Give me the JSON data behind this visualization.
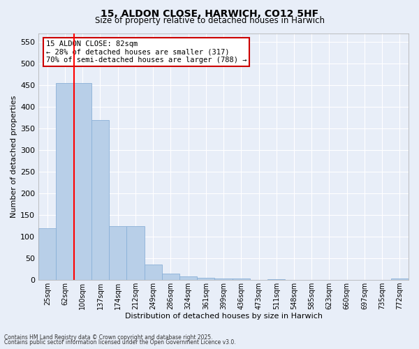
{
  "title1": "15, ALDON CLOSE, HARWICH, CO12 5HF",
  "title2": "Size of property relative to detached houses in Harwich",
  "xlabel": "Distribution of detached houses by size in Harwich",
  "ylabel": "Number of detached properties",
  "categories": [
    "25sqm",
    "62sqm",
    "100sqm",
    "137sqm",
    "174sqm",
    "212sqm",
    "249sqm",
    "286sqm",
    "324sqm",
    "361sqm",
    "399sqm",
    "436sqm",
    "473sqm",
    "511sqm",
    "548sqm",
    "585sqm",
    "623sqm",
    "660sqm",
    "697sqm",
    "735sqm",
    "772sqm"
  ],
  "values": [
    120,
    455,
    455,
    370,
    125,
    125,
    35,
    15,
    8,
    5,
    4,
    3,
    0,
    2,
    0,
    0,
    0,
    0,
    0,
    0,
    4
  ],
  "bar_color": "#b8cfe8",
  "bar_edge_color": "#8ab0d8",
  "bg_color": "#e8eef8",
  "grid_color": "#ffffff",
  "red_line_x": 1.5,
  "annotation_text": "15 ALDON CLOSE: 82sqm\n← 28% of detached houses are smaller (317)\n70% of semi-detached houses are larger (788) →",
  "annotation_box_color": "#ffffff",
  "annotation_box_edge": "#cc0000",
  "ylim": [
    0,
    570
  ],
  "yticks": [
    0,
    50,
    100,
    150,
    200,
    250,
    300,
    350,
    400,
    450,
    500,
    550
  ],
  "footer1": "Contains HM Land Registry data © Crown copyright and database right 2025.",
  "footer2": "Contains public sector information licensed under the Open Government Licence v3.0."
}
